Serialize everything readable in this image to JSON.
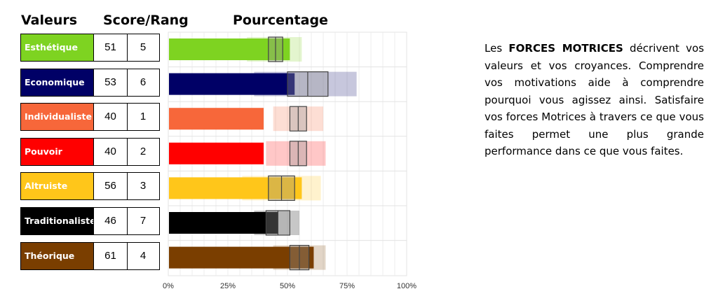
{
  "headers": {
    "valeurs": "Valeurs",
    "score_rang": "Score/Rang",
    "pourcentage": "Pourcentage"
  },
  "description": {
    "before": "Les ",
    "bold": "FORCES MOTRICES",
    "after": " décrivent vos valeurs et vos croyances. Comprendre vos motivations aide à comprendre pourquoi vous agissez ainsi. Satisfaire vos forces Motrices à travers ce que vous faites permet une plus grande performance dans ce que vous faites."
  },
  "chart_data": {
    "type": "bar",
    "orientation": "horizontal",
    "x_ticks": [
      "0%",
      "25%",
      "50%",
      "75%",
      "100%"
    ],
    "xlim": [
      0,
      100
    ],
    "grid": true,
    "rows": [
      {
        "name": "Esthétique",
        "score": "51",
        "rang": "5",
        "value": 51,
        "color": "#7ed321",
        "band_outer": [
          33,
          56
        ],
        "band_inner": [
          42,
          48
        ]
      },
      {
        "name": "Economique",
        "score": "53",
        "rang": "6",
        "value": 53,
        "color": "#000066",
        "band_outer": [
          36,
          79
        ],
        "band_inner": [
          50,
          67
        ]
      },
      {
        "name": "Individualiste",
        "score": "40",
        "rang": "1",
        "value": 40,
        "color": "#f7673a",
        "band_outer": [
          44,
          65
        ],
        "band_inner": [
          51,
          58
        ]
      },
      {
        "name": "Pouvoir",
        "score": "40",
        "rang": "2",
        "value": 40,
        "color": "#ff0000",
        "band_outer": [
          41,
          66
        ],
        "band_inner": [
          51,
          58
        ]
      },
      {
        "name": "Altruiste",
        "score": "56",
        "rang": "3",
        "value": 56,
        "color": "#ffc61a",
        "band_outer": [
          31,
          64
        ],
        "band_inner": [
          42,
          53
        ]
      },
      {
        "name": "Traditionaliste",
        "score": "46",
        "rang": "7",
        "value": 46,
        "color": "#000000",
        "band_outer": [
          36,
          55
        ],
        "band_inner": [
          41,
          51
        ]
      },
      {
        "name": "Théorique",
        "score": "61",
        "rang": "4",
        "value": 61,
        "color": "#7a3e00",
        "band_outer": [
          44,
          66
        ],
        "band_inner": [
          51,
          59
        ]
      }
    ]
  }
}
